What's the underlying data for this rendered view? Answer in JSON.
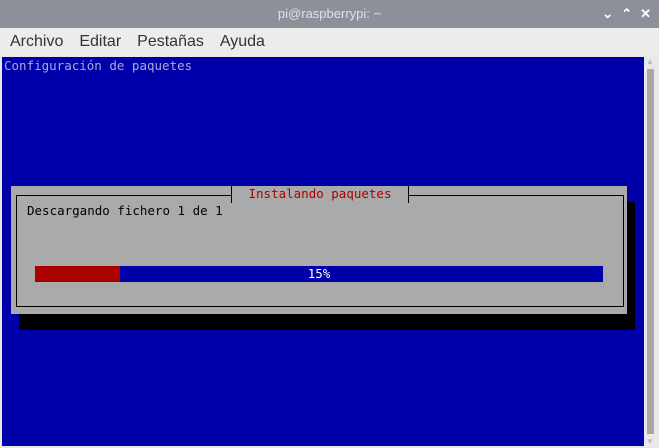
{
  "window": {
    "title": "pi@raspberrypi: ~",
    "buttons": [
      "⌄",
      "⌃",
      "✕"
    ]
  },
  "menu": [
    "Archivo",
    "Editar",
    "Pestañas",
    "Ayuda"
  ],
  "terminal": {
    "header": "Configuración de paquetes",
    "dialog": {
      "title": "Instalando paquetes",
      "message": "Descargando fichero 1 de 1",
      "progress_percent": 15,
      "progress_label": "15%"
    },
    "colors": {
      "background": "#0000aa",
      "dialog": "#aaaaaa",
      "progress_fill": "#aa0000",
      "title": "#aa0000"
    }
  }
}
